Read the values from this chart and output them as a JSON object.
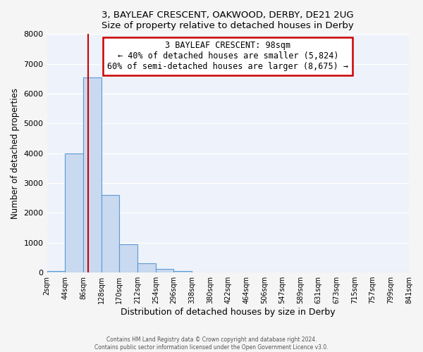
{
  "title": "3, BAYLEAF CRESCENT, OAKWOOD, DERBY, DE21 2UG",
  "subtitle": "Size of property relative to detached houses in Derby",
  "xlabel": "Distribution of detached houses by size in Derby",
  "ylabel": "Number of detached properties",
  "bar_color": "#c9d9f0",
  "bar_edge_color": "#5b9bd5",
  "bg_color": "#eef2fa",
  "fig_color": "#f5f5f5",
  "grid_color": "#ffffff",
  "ylim": [
    0,
    8000
  ],
  "yticks": [
    0,
    1000,
    2000,
    3000,
    4000,
    5000,
    6000,
    7000,
    8000
  ],
  "bin_edges": [
    2,
    44,
    86,
    128,
    170,
    212,
    254,
    296,
    338,
    380,
    422,
    464,
    506,
    547,
    589,
    631,
    673,
    715,
    757,
    799,
    841
  ],
  "bin_labels": [
    "2sqm",
    "44sqm",
    "86sqm",
    "128sqm",
    "170sqm",
    "212sqm",
    "254sqm",
    "296sqm",
    "338sqm",
    "380sqm",
    "422sqm",
    "464sqm",
    "506sqm",
    "547sqm",
    "589sqm",
    "631sqm",
    "673sqm",
    "715sqm",
    "757sqm",
    "799sqm",
    "841sqm"
  ],
  "counts": [
    50,
    4000,
    6550,
    2600,
    950,
    310,
    130,
    50,
    0,
    0,
    0,
    0,
    0,
    0,
    0,
    0,
    0,
    0,
    0,
    0
  ],
  "vline_x": 98,
  "vline_color": "#cc0000",
  "annotation_title": "3 BAYLEAF CRESCENT: 98sqm",
  "annotation_line1": "← 40% of detached houses are smaller (5,824)",
  "annotation_line2": "60% of semi-detached houses are larger (8,675) →",
  "annotation_box_color": "#ffffff",
  "annotation_box_edge": "#cc0000",
  "footer1": "Contains HM Land Registry data © Crown copyright and database right 2024.",
  "footer2": "Contains public sector information licensed under the Open Government Licence v3.0."
}
